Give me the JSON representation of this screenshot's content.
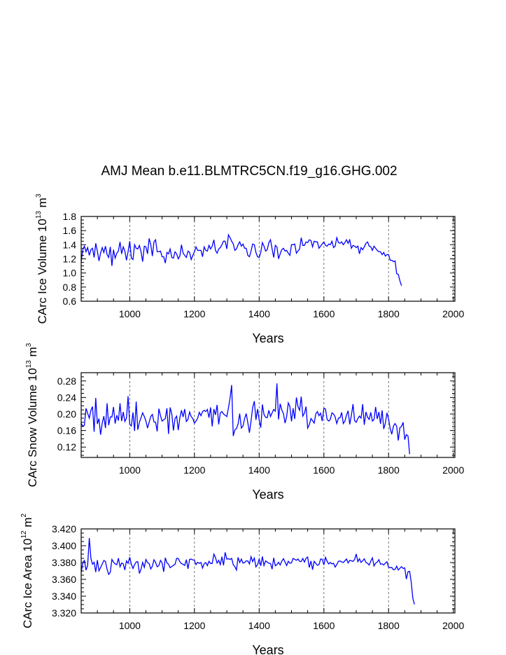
{
  "figure": {
    "title": "AMJ Mean b.e11.BLMTRC5CN.f19_g16.GHG.002"
  },
  "chart_data": [
    {
      "type": "line",
      "title": "AMJ Mean b.e11.BLMTRC5CN.f19_g16.GHG.002",
      "xlabel": "Years",
      "ylabel": {
        "main": "CArc Ice Volume 10",
        "exp": "13",
        "unit": " m",
        "unit_exp": "3"
      },
      "xlim": [
        850,
        2005
      ],
      "ylim": [
        0.6,
        1.8
      ],
      "xticks": [
        1000,
        1200,
        1400,
        1600,
        1800,
        2000
      ],
      "xtick_labels": [
        "1000",
        "1200",
        "1400",
        "1600",
        "1800",
        "2000"
      ],
      "yticks": [
        0.6,
        0.8,
        1.0,
        1.2,
        1.4,
        1.6,
        1.8
      ],
      "ytick_labels": [
        "0.6",
        "0.8",
        "1.0",
        "1.2",
        "1.4",
        "1.6",
        "1.8"
      ],
      "grid": "vertical dashed at x ticks",
      "color": "#0000ff",
      "series": [
        {
          "name": "Ice Volume",
          "x_start": 850,
          "x_step": 5,
          "values": [
            1.16,
            1.33,
            1.38,
            1.3,
            1.36,
            1.25,
            1.33,
            1.35,
            1.22,
            1.42,
            1.31,
            1.17,
            1.28,
            1.36,
            1.29,
            1.38,
            1.26,
            1.22,
            1.37,
            1.1,
            1.33,
            1.21,
            1.28,
            1.31,
            1.44,
            1.27,
            1.37,
            1.31,
            1.18,
            1.3,
            1.45,
            1.21,
            1.19,
            1.4,
            1.35,
            1.34,
            1.39,
            1.3,
            1.16,
            1.38,
            1.37,
            1.27,
            1.49,
            1.4,
            1.24,
            1.44,
            1.47,
            1.3,
            1.3,
            1.31,
            1.23,
            1.23,
            1.14,
            1.29,
            1.27,
            1.34,
            1.22,
            1.21,
            1.3,
            1.27,
            1.2,
            1.24,
            1.4,
            1.28,
            1.25,
            1.22,
            1.31,
            1.29,
            1.19,
            1.25,
            1.3,
            1.37,
            1.32,
            1.32,
            1.32,
            1.23,
            1.37,
            1.32,
            1.31,
            1.39,
            1.34,
            1.38,
            1.47,
            1.32,
            1.28,
            1.34,
            1.36,
            1.4,
            1.45,
            1.45,
            1.34,
            1.54,
            1.5,
            1.45,
            1.41,
            1.32,
            1.34,
            1.4,
            1.44,
            1.38,
            1.41,
            1.35,
            1.35,
            1.25,
            1.23,
            1.31,
            1.41,
            1.4,
            1.29,
            1.23,
            1.22,
            1.29,
            1.43,
            1.38,
            1.31,
            1.33,
            1.43,
            1.47,
            1.34,
            1.22,
            1.39,
            1.37,
            1.2,
            1.27,
            1.33,
            1.35,
            1.31,
            1.32,
            1.28,
            1.25,
            1.4,
            1.4,
            1.41,
            1.28,
            1.31,
            1.34,
            1.5,
            1.39,
            1.39,
            1.44,
            1.43,
            1.47,
            1.46,
            1.37,
            1.45,
            1.44,
            1.44,
            1.35,
            1.38,
            1.41,
            1.44,
            1.39,
            1.38,
            1.41,
            1.4,
            1.45,
            1.36,
            1.38,
            1.5,
            1.43,
            1.42,
            1.44,
            1.4,
            1.43,
            1.47,
            1.42,
            1.47,
            1.35,
            1.39,
            1.38,
            1.36,
            1.38,
            1.27,
            1.36,
            1.33,
            1.37,
            1.42,
            1.44,
            1.38,
            1.37,
            1.32,
            1.38,
            1.35,
            1.32,
            1.3,
            1.3,
            1.26,
            1.29,
            1.24,
            1.26,
            1.26,
            1.18,
            1.18,
            1.16,
            1.17,
            0.99,
            0.98,
            0.89,
            0.82
          ]
        }
      ]
    },
    {
      "type": "line",
      "xlabel": "Years",
      "ylabel": {
        "main": "CArc Snow Volume 10",
        "exp": "13",
        "unit": " m",
        "unit_exp": "3"
      },
      "xlim": [
        850,
        2005
      ],
      "ylim": [
        0.095,
        0.3
      ],
      "xticks": [
        1000,
        1200,
        1400,
        1600,
        1800,
        2000
      ],
      "xtick_labels": [
        "1000",
        "1200",
        "1400",
        "1600",
        "1800",
        "2000"
      ],
      "yticks": [
        0.12,
        0.16,
        0.2,
        0.24,
        0.28
      ],
      "ytick_labels": [
        "0.12",
        "0.16",
        "0.20",
        "0.24",
        "0.28"
      ],
      "grid": "vertical dashed at x ticks",
      "color": "#0000ff",
      "series": [
        {
          "name": "Snow Volume",
          "x_start": 850,
          "x_step": 5,
          "values": [
            0.178,
            0.17,
            0.173,
            0.214,
            0.202,
            0.19,
            0.209,
            0.218,
            0.157,
            0.239,
            0.176,
            0.189,
            0.15,
            0.178,
            0.195,
            0.166,
            0.226,
            0.173,
            0.193,
            0.193,
            0.217,
            0.177,
            0.197,
            0.184,
            0.226,
            0.183,
            0.205,
            0.182,
            0.19,
            0.243,
            0.175,
            0.171,
            0.204,
            0.159,
            0.23,
            0.162,
            0.18,
            0.191,
            0.203,
            0.194,
            0.183,
            0.166,
            0.18,
            0.194,
            0.199,
            0.181,
            0.18,
            0.158,
            0.213,
            0.196,
            0.183,
            0.186,
            0.189,
            0.214,
            0.152,
            0.216,
            0.2,
            0.16,
            0.189,
            0.195,
            0.161,
            0.191,
            0.209,
            0.193,
            0.212,
            0.182,
            0.187,
            0.205,
            0.194,
            0.189,
            0.178,
            0.183,
            0.19,
            0.204,
            0.196,
            0.206,
            0.209,
            0.206,
            0.211,
            0.191,
            0.216,
            0.17,
            0.212,
            0.198,
            0.222,
            0.175,
            0.203,
            0.206,
            0.2,
            0.197,
            0.194,
            0.215,
            0.238,
            0.27,
            0.147,
            0.162,
            0.165,
            0.176,
            0.201,
            0.166,
            0.171,
            0.189,
            0.201,
            0.179,
            0.155,
            0.183,
            0.216,
            0.231,
            0.186,
            0.212,
            0.186,
            0.167,
            0.223,
            0.199,
            0.192,
            0.191,
            0.209,
            0.194,
            0.203,
            0.211,
            0.207,
            0.274,
            0.187,
            0.225,
            0.21,
            0.201,
            0.178,
            0.194,
            0.227,
            0.218,
            0.182,
            0.214,
            0.188,
            0.24,
            0.218,
            0.209,
            0.242,
            0.195,
            0.202,
            0.218,
            0.166,
            0.174,
            0.189,
            0.184,
            0.178,
            0.2,
            0.206,
            0.196,
            0.202,
            0.183,
            0.214,
            0.212,
            0.187,
            0.183,
            0.187,
            0.203,
            0.2,
            0.193,
            0.177,
            0.19,
            0.191,
            0.204,
            0.177,
            0.183,
            0.197,
            0.208,
            0.175,
            0.197,
            0.224,
            0.184,
            0.18,
            0.189,
            0.195,
            0.19,
            0.224,
            0.174,
            0.205,
            0.192,
            0.187,
            0.204,
            0.183,
            0.187,
            0.217,
            0.188,
            0.205,
            0.176,
            0.209,
            0.164,
            0.178,
            0.203,
            0.188,
            0.165,
            0.151,
            0.171,
            0.177,
            0.17,
            0.136,
            0.167,
            0.17,
            0.18,
            0.138,
            0.15,
            0.147,
            0.103
          ]
        }
      ]
    },
    {
      "type": "line",
      "xlabel": "Years",
      "ylabel": {
        "main": "CArc Ice Area 10",
        "exp": "12",
        "unit": " m",
        "unit_exp": "2"
      },
      "xlim": [
        850,
        2005
      ],
      "ylim": [
        3.32,
        3.42
      ],
      "xticks": [
        1000,
        1200,
        1400,
        1600,
        1800,
        2000
      ],
      "xtick_labels": [
        "1000",
        "1200",
        "1400",
        "1600",
        "1800",
        "2000"
      ],
      "yticks": [
        3.32,
        3.34,
        3.36,
        3.38,
        3.4,
        3.42
      ],
      "ytick_labels": [
        "3.320",
        "3.340",
        "3.360",
        "3.380",
        "3.400",
        "3.420"
      ],
      "grid": "vertical dashed at x ticks",
      "color": "#0000ff",
      "series": [
        {
          "name": "Ice Area",
          "x_start": 850,
          "x_step": 5,
          "values": [
            3.3679,
            3.38,
            3.3824,
            3.3709,
            3.3765,
            3.4091,
            3.3848,
            3.378,
            3.3803,
            3.3687,
            3.3828,
            3.3702,
            3.3741,
            3.3783,
            3.3824,
            3.3812,
            3.3719,
            3.3659,
            3.3686,
            3.3837,
            3.3804,
            3.3783,
            3.3774,
            3.3852,
            3.375,
            3.3794,
            3.3784,
            3.3711,
            3.382,
            3.379,
            3.3863,
            3.3779,
            3.373,
            3.3774,
            3.3807,
            3.381,
            3.3669,
            3.372,
            3.3802,
            3.3742,
            3.3837,
            3.3798,
            3.3788,
            3.3723,
            3.3755,
            3.3833,
            3.3802,
            3.3749,
            3.3763,
            3.3826,
            3.3797,
            3.3689,
            3.3857,
            3.3796,
            3.378,
            3.3738,
            3.3753,
            3.3766,
            3.3778,
            3.385,
            3.3848,
            3.3809,
            3.3787,
            3.3779,
            3.3765,
            3.3834,
            3.3725,
            3.3837,
            3.3841,
            3.3832,
            3.3826,
            3.3775,
            3.3803,
            3.379,
            3.38,
            3.3734,
            3.3785,
            3.38,
            3.3763,
            3.3815,
            3.3789,
            3.3789,
            3.39,
            3.3859,
            3.3793,
            3.3826,
            3.3776,
            3.3868,
            3.3767,
            3.3922,
            3.384,
            3.3846,
            3.3837,
            3.3849,
            3.3773,
            3.3752,
            3.3711,
            3.3862,
            3.38,
            3.3841,
            3.3793,
            3.38,
            3.382,
            3.3819,
            3.3783,
            3.387,
            3.3811,
            3.3853,
            3.3748,
            3.3775,
            3.3841,
            3.3761,
            3.3872,
            3.3764,
            3.3819,
            3.3806,
            3.3791,
            3.379,
            3.3721,
            3.3855,
            3.3762,
            3.3775,
            3.3803,
            3.377,
            3.3815,
            3.3846,
            3.3806,
            3.3764,
            3.3815,
            3.3792,
            3.3796,
            3.3849,
            3.3838,
            3.3827,
            3.3842,
            3.3813,
            3.3812,
            3.3848,
            3.3805,
            3.3851,
            3.3865,
            3.3741,
            3.3818,
            3.3714,
            3.3814,
            3.379,
            3.3767,
            3.3775,
            3.3842,
            3.3839,
            3.3772,
            3.3862,
            3.3813,
            3.3783,
            3.3801,
            3.3783,
            3.3791,
            3.3746,
            3.3776,
            3.3815,
            3.3818,
            3.3808,
            3.38,
            3.3821,
            3.3842,
            3.3795,
            3.3825,
            3.3821,
            3.3813,
            3.3837,
            3.3902,
            3.381,
            3.3845,
            3.3801,
            3.382,
            3.3844,
            3.3801,
            3.379,
            3.377,
            3.3817,
            3.3855,
            3.3759,
            3.3793,
            3.3805,
            3.3834,
            3.3779,
            3.3785,
            3.377,
            3.3794,
            3.3809,
            3.3744,
            3.3738,
            3.3741,
            3.3713,
            3.3718,
            3.3757,
            3.3711,
            3.3732,
            3.3751,
            3.373,
            3.3736,
            3.3603,
            3.3691,
            3.3695,
            3.3565,
            3.3375,
            3.3302
          ]
        }
      ]
    }
  ]
}
